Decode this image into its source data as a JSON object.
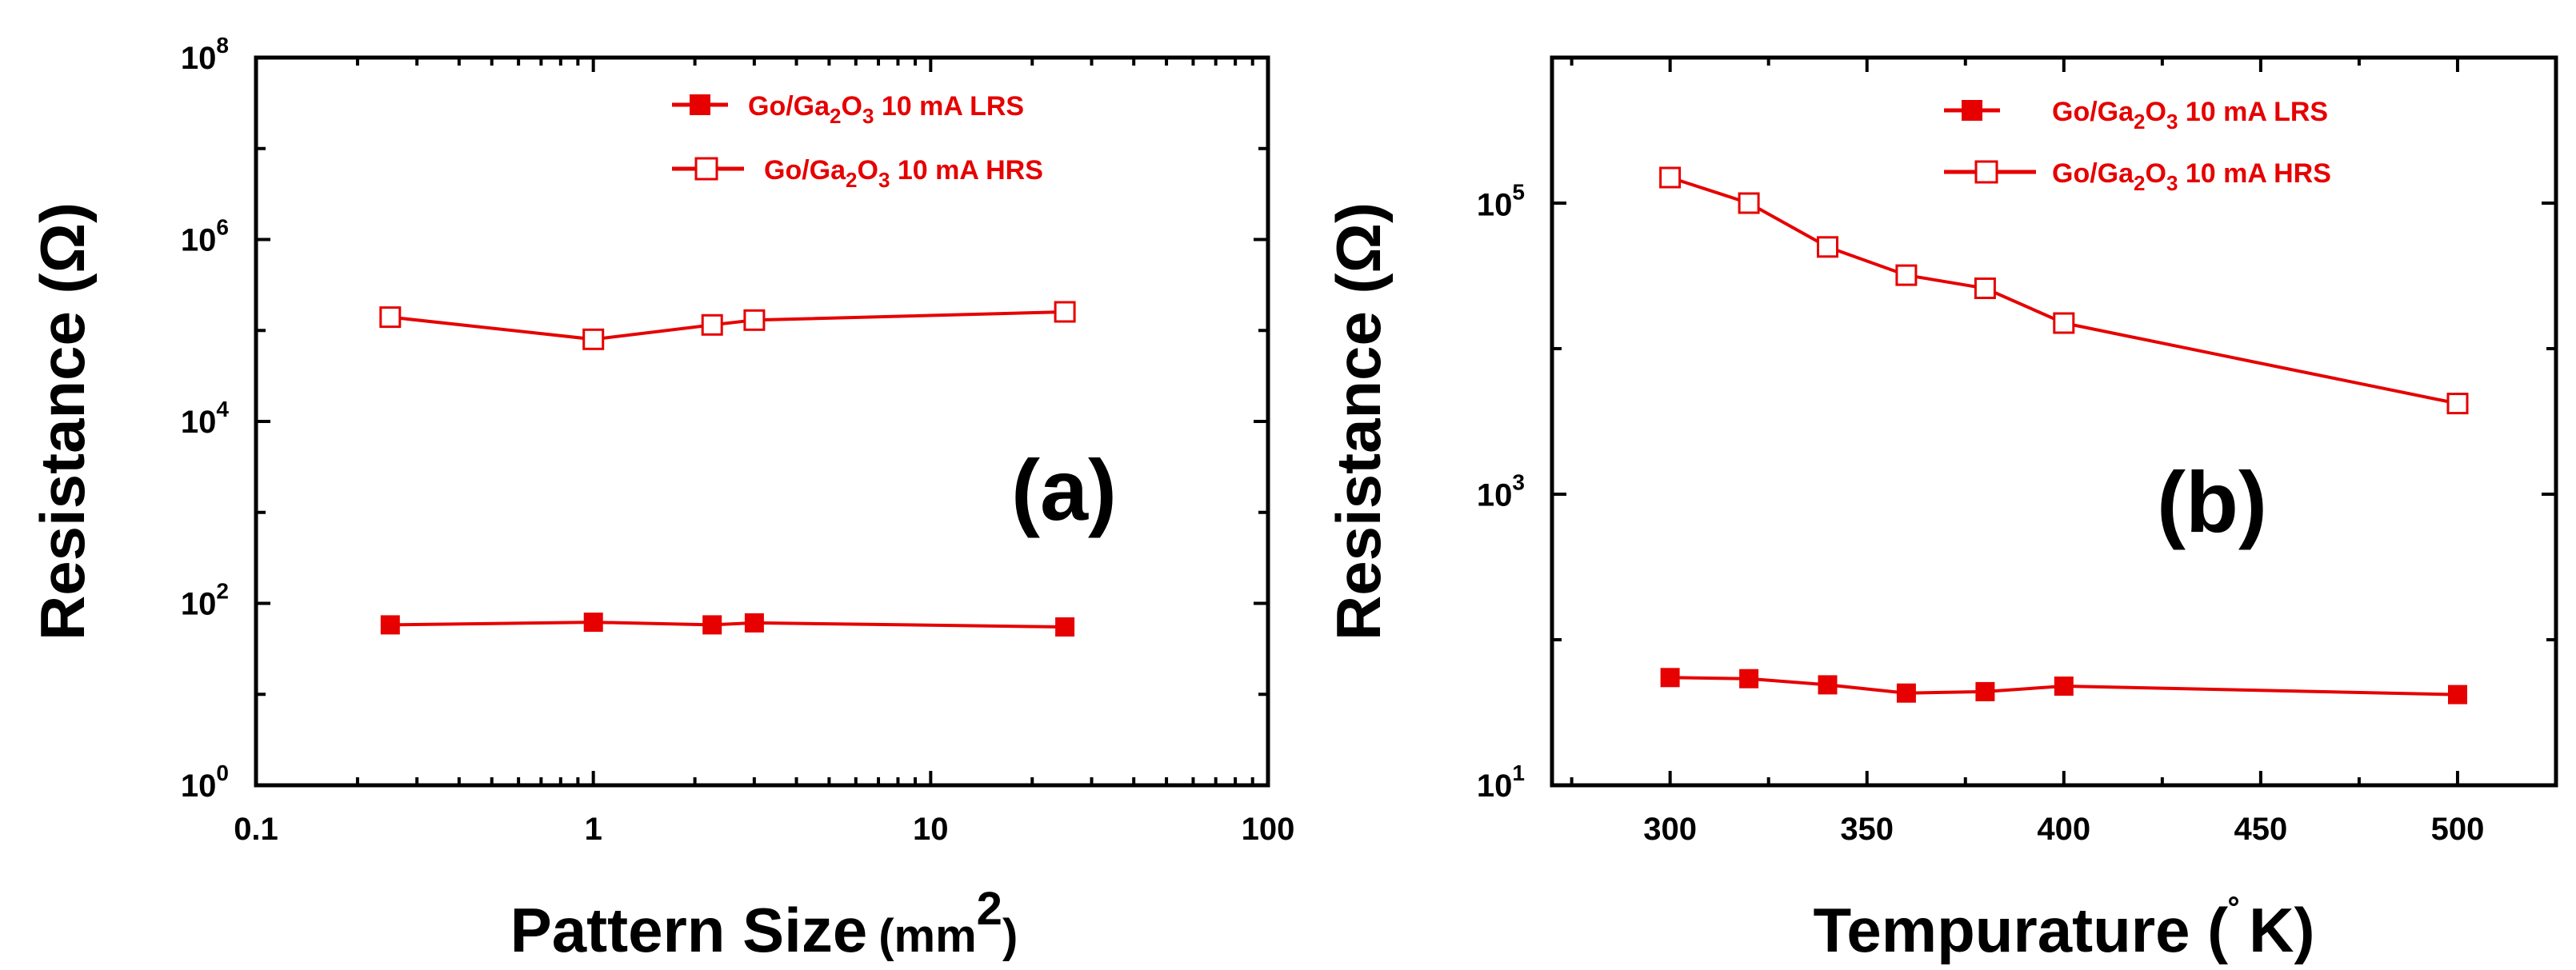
{
  "chart_data": [
    {
      "type": "line",
      "panel_label": "(a)",
      "xscale": "log",
      "yscale": "log",
      "xlim": [
        0.1,
        100
      ],
      "ylim": [
        1,
        100000000
      ],
      "xlabel": "Pattern Size",
      "xlabel_units": "(mm",
      "xlabel_sup": "2",
      "xlabel_close": ")",
      "ylabel": "Resistance (Ω)",
      "x_ticks": [
        "0.1",
        "1",
        "10",
        "100"
      ],
      "y_ticks": [
        {
          "base": "10",
          "exp": "0"
        },
        {
          "base": "10",
          "exp": "2"
        },
        {
          "base": "10",
          "exp": "4"
        },
        {
          "base": "10",
          "exp": "6"
        },
        {
          "base": "10",
          "exp": "8"
        }
      ],
      "legend_position": "top-right",
      "series": [
        {
          "name": "Go/Ga2O3 10 mA LRS",
          "label_pre": "Go/Ga",
          "sub1": "2",
          "label_mid": "O",
          "sub2": "3",
          "label_post": " 10 mA LRS",
          "marker": "filled-square",
          "x": [
            0.25,
            1,
            2.25,
            3,
            25
          ],
          "y": [
            58,
            62,
            58,
            61,
            55
          ]
        },
        {
          "name": "Go/Ga2O3 10 mA HRS",
          "label_pre": "Go/Ga",
          "sub1": "2",
          "label_mid": "O",
          "sub2": "3",
          "label_post": " 10 mA HRS",
          "marker": "open-square",
          "x": [
            0.25,
            1,
            2.25,
            3,
            25
          ],
          "y": [
            140000,
            80000,
            115000,
            130000,
            160000
          ]
        }
      ]
    },
    {
      "type": "line",
      "panel_label": "(b)",
      "xscale": "linear",
      "yscale": "log",
      "xlim": [
        270,
        525
      ],
      "ylim": [
        10,
        1000000
      ],
      "xlabel": "Tempurature (",
      "xlabel_units": "˚",
      "xlabel_sup": "",
      "xlabel_close": "K)",
      "ylabel": "Resistance (Ω)",
      "x_ticks": [
        "300",
        "350",
        "400",
        "450",
        "500"
      ],
      "x_tick_values": [
        300,
        350,
        400,
        450,
        500
      ],
      "y_ticks": [
        {
          "base": "10",
          "exp": "1"
        },
        {
          "base": "10",
          "exp": "3"
        },
        {
          "base": "10",
          "exp": "5"
        }
      ],
      "y_tick_values": [
        10,
        1000,
        100000
      ],
      "legend_position": "top-right",
      "series": [
        {
          "name": "Go/Ga2O3 10 mA LRS",
          "label_pre": "Go/Ga",
          "sub1": "2",
          "label_mid": "O",
          "sub2": "3",
          "label_post": " 10 mA LRS",
          "marker": "filled-square",
          "x": [
            300,
            320,
            340,
            360,
            380,
            400,
            500
          ],
          "y": [
            55,
            54,
            49,
            43,
            44,
            48,
            42
          ]
        },
        {
          "name": "Go/Ga2O3 10 mA HRS",
          "label_pre": "Go/Ga",
          "sub1": "2",
          "label_mid": "O",
          "sub2": "3",
          "label_post": " 10 mA HRS",
          "marker": "open-square",
          "x": [
            300,
            320,
            340,
            360,
            380,
            400,
            500
          ],
          "y": [
            150000,
            100000,
            50000,
            32000,
            26000,
            15000,
            4200
          ]
        }
      ]
    }
  ],
  "colors": {
    "series": "#e60000",
    "axis": "#000000"
  }
}
